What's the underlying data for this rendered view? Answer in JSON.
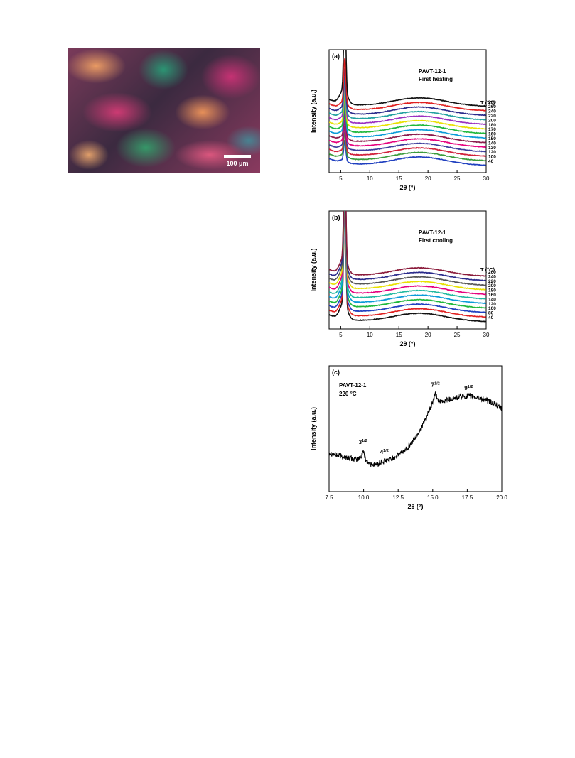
{
  "micrograph": {
    "scale_label": "100 μm"
  },
  "chart_data": [
    {
      "type": "line",
      "panel_label": "(a)",
      "sample": "PAVT-12-1",
      "condition": "First heating",
      "xlabel": "2θ (°)",
      "ylabel": "Intensity (a.u.)",
      "xlim": [
        3,
        30
      ],
      "xticks": [
        "5",
        "10",
        "15",
        "20",
        "25",
        "30"
      ],
      "legend_title": "T (°C)",
      "legend_position": "right",
      "series": [
        {
          "name": "40",
          "color": "#1f3fbf",
          "peak": 28,
          "hump": 12
        },
        {
          "name": "100",
          "color": "#3a9a3a",
          "peak": 32,
          "hump": 12
        },
        {
          "name": "120",
          "color": "#d0203a",
          "peak": 34,
          "hump": 12
        },
        {
          "name": "130",
          "color": "#3d3d9c",
          "peak": 36,
          "hump": 12
        },
        {
          "name": "140",
          "color": "#e6007e",
          "peak": 38,
          "hump": 12
        },
        {
          "name": "150",
          "color": "#8a1a4a",
          "peak": 40,
          "hump": 12
        },
        {
          "name": "160",
          "color": "#0a9bd8",
          "peak": 42,
          "hump": 12
        },
        {
          "name": "170",
          "color": "#1fb83c",
          "peak": 44,
          "hump": 12
        },
        {
          "name": "180",
          "color": "#e8e000",
          "peak": 46,
          "hump": 12
        },
        {
          "name": "200",
          "color": "#9a30c0",
          "peak": 48,
          "hump": 12
        },
        {
          "name": "220",
          "color": "#22a0a0",
          "peak": 50,
          "hump": 12
        },
        {
          "name": "240",
          "color": "#2a2a8a",
          "peak": 55,
          "hump": 12
        },
        {
          "name": "260",
          "color": "#e02020",
          "peak": 62,
          "hump": 12
        },
        {
          "name": "280",
          "color": "#111111",
          "peak": 130,
          "hump": 12
        }
      ]
    },
    {
      "type": "line",
      "panel_label": "(b)",
      "sample": "PAVT-12-1",
      "condition": "First cooling",
      "xlabel": "2θ (°)",
      "ylabel": "Intensity (a.u.)",
      "xlim": [
        3,
        30
      ],
      "xticks": [
        "5",
        "10",
        "15",
        "20",
        "25",
        "30"
      ],
      "legend_title": "T (°C)",
      "legend_position": "right",
      "series": [
        {
          "name": "40",
          "color": "#111111",
          "peak": 150,
          "hump": 12
        },
        {
          "name": "80",
          "color": "#e02020",
          "peak": 150,
          "hump": 12
        },
        {
          "name": "100",
          "color": "#1f3fbf",
          "peak": 150,
          "hump": 12
        },
        {
          "name": "120",
          "color": "#1fb83c",
          "peak": 150,
          "hump": 12
        },
        {
          "name": "140",
          "color": "#0a9bd8",
          "peak": 150,
          "hump": 12
        },
        {
          "name": "160",
          "color": "#1fb8a0",
          "peak": 150,
          "hump": 12
        },
        {
          "name": "180",
          "color": "#e6007e",
          "peak": 150,
          "hump": 12
        },
        {
          "name": "200",
          "color": "#e8e000",
          "peak": 150,
          "hump": 12
        },
        {
          "name": "220",
          "color": "#555555",
          "peak": 150,
          "hump": 12
        },
        {
          "name": "240",
          "color": "#2a2a8a",
          "peak": 150,
          "hump": 12
        },
        {
          "name": "260",
          "color": "#8a1a3a",
          "peak": 150,
          "hump": 12
        }
      ]
    },
    {
      "type": "line",
      "panel_label": "(c)",
      "sample": "PAVT-12-1",
      "condition": "220 °C",
      "xlabel": "2θ (°)",
      "ylabel": "Intensity (a.u.)",
      "xlim": [
        7.5,
        20.0
      ],
      "xticks": [
        "7.5",
        "10.0",
        "12.5",
        "15.0",
        "17.5",
        "20.0"
      ],
      "annotations": [
        {
          "text": "3",
          "sup": "1/2",
          "x": 9.95
        },
        {
          "text": "4",
          "sup": "1/2",
          "x": 11.5
        },
        {
          "text": "7",
          "sup": "1/2",
          "x": 15.2
        },
        {
          "text": "9",
          "sup": "1/2",
          "x": 17.6
        }
      ],
      "series": [
        {
          "name": "",
          "color": "#000000",
          "x": [
            7.5,
            8.0,
            8.5,
            9.0,
            9.5,
            9.8,
            9.95,
            10.2,
            10.5,
            11.0,
            11.5,
            12.0,
            12.5,
            13.0,
            13.5,
            14.0,
            14.5,
            14.9,
            15.2,
            15.5,
            16.0,
            16.5,
            17.0,
            17.5,
            18.0,
            18.5,
            19.0,
            19.5,
            20.0
          ],
          "y": [
            0.3,
            0.27,
            0.25,
            0.23,
            0.21,
            0.24,
            0.32,
            0.2,
            0.15,
            0.16,
            0.19,
            0.22,
            0.27,
            0.33,
            0.42,
            0.55,
            0.7,
            0.86,
            1.0,
            0.9,
            0.93,
            0.95,
            0.97,
            0.98,
            0.97,
            0.95,
            0.92,
            0.88,
            0.82
          ]
        }
      ]
    }
  ]
}
